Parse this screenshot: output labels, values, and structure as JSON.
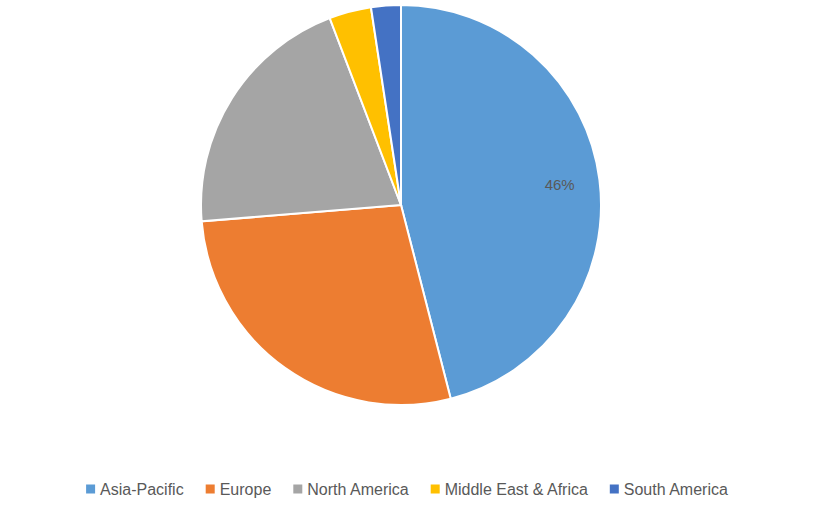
{
  "chart_data": {
    "type": "pie",
    "categories": [
      "Asia-Pacific",
      "Europe",
      "North America",
      "Middle East & Africa",
      "South America"
    ],
    "values": [
      46,
      27.7,
      20.5,
      3.4,
      2.4
    ],
    "value_labels": [
      "46%",
      null,
      null,
      null,
      null
    ],
    "colors": [
      "#5b9bd5",
      "#ed7d31",
      "#a5a5a5",
      "#ffc000",
      "#4472c4"
    ],
    "data_labels": true,
    "legend": "bottom"
  }
}
